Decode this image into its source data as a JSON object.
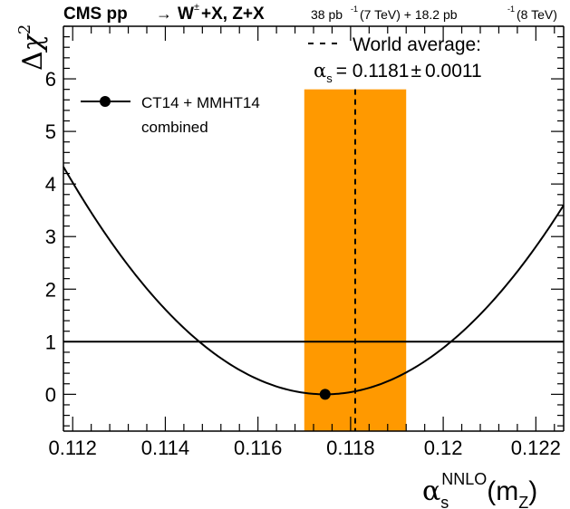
{
  "colors": {
    "band": "#ff9900",
    "axis": "#000000",
    "curve": "#000000",
    "background": "#ffffff"
  },
  "header": {
    "experiment": "CMS pp",
    "arrow": "→",
    "process_w": "W",
    "pm": "±",
    "process_rest": "+X, Z+X",
    "lumi_7_value": "38 pb",
    "lumi_7_exp": "-1",
    "lumi_7_energy": "(7 TeV) + 18.2 pb",
    "lumi_8_exp": "-1",
    "lumi_8_energy": "(8 TeV)"
  },
  "legend": {
    "dashed_label": "World average:",
    "alpha_symbol": "α",
    "alpha_sub": "s",
    "alpha_value": "= 0.1181",
    "alpha_pm": "±",
    "alpha_unc": "0.0011",
    "fit_label_line1": "CT14 + MMHT14",
    "fit_label_line2": "combined"
  },
  "axes": {
    "y_label_delta": "Δ",
    "y_label_chi": "χ",
    "y_label_exp": "2",
    "x_label_alpha": "α",
    "x_label_sub": "s",
    "x_label_sup": "NNLO",
    "x_label_paren_open": "(m",
    "x_label_mz_sub": "Z",
    "x_label_paren_close": ")"
  },
  "chart_data": {
    "type": "line",
    "title": "CMS pp → W±+X, Z+X",
    "xlabel": "α_s^NNLO(m_Z)",
    "ylabel": "Δχ²",
    "xlim": [
      0.1118,
      0.1226
    ],
    "ylim": [
      -0.7,
      7.0
    ],
    "x_ticks": [
      0.112,
      0.114,
      0.116,
      0.118,
      0.12,
      0.122
    ],
    "x_tick_labels": [
      "0.112",
      "0.114",
      "0.116",
      "0.118",
      "0.12",
      "0.122"
    ],
    "y_ticks": [
      0,
      1,
      2,
      3,
      4,
      5,
      6
    ],
    "y_tick_labels": [
      "0",
      "1",
      "2",
      "3",
      "4",
      "5",
      "6"
    ],
    "series": [
      {
        "name": "CT14 + MMHT14 combined",
        "type": "parabola",
        "x": [
          0.1118,
          0.112,
          0.113,
          0.114,
          0.115,
          0.116,
          0.117,
          0.1175,
          0.118,
          0.119,
          0.12,
          0.121,
          0.122,
          0.1226
        ],
        "y": [
          4.1,
          3.77,
          2.36,
          1.27,
          0.52,
          0.1,
          0.01,
          0.0,
          0.03,
          0.29,
          0.98,
          2.03,
          3.34,
          4.05
        ]
      }
    ],
    "best_fit": {
      "x": 0.11745,
      "y": 0.0
    },
    "reference_line": {
      "y": 1.0
    },
    "world_average": {
      "value": 0.1181,
      "uncertainty": 0.0011,
      "band_ymin": -0.7,
      "band_ymax": 5.8
    }
  }
}
